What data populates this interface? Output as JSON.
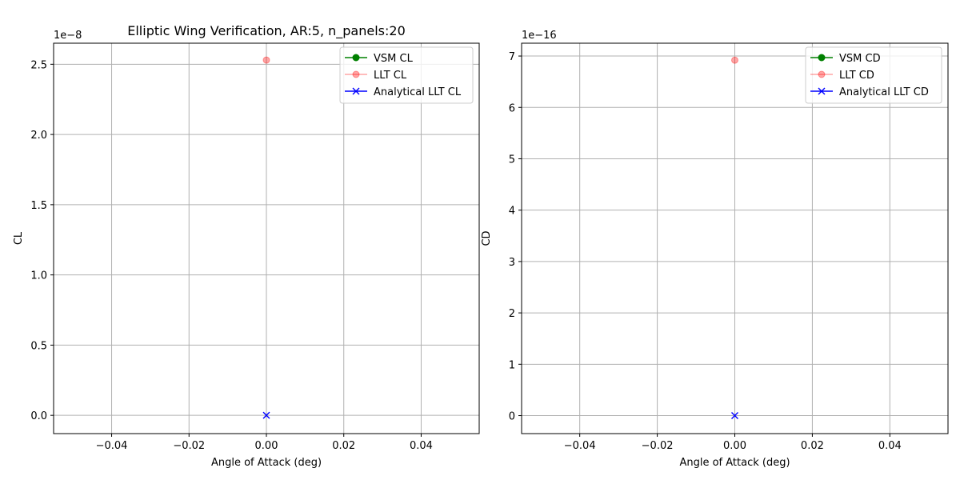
{
  "figure": {
    "title": "Elliptic Wing Verification, AR:5, n_panels:20"
  },
  "chart_data": [
    {
      "type": "line",
      "title": "Elliptic Wing Verification, AR:5, n_panels:20",
      "xlabel": "Angle of Attack (deg)",
      "ylabel": "CL",
      "y_offset_label": "1e−8",
      "y_multiplier": 1e-08,
      "xlim": [
        -0.055,
        0.055
      ],
      "ylim": [
        -0.13,
        2.65
      ],
      "xticks": [
        -0.04,
        -0.02,
        0.0,
        0.02,
        0.04
      ],
      "xtick_labels": [
        "−0.04",
        "−0.02",
        "0.00",
        "0.02",
        "0.04"
      ],
      "yticks": [
        0.0,
        0.5,
        1.0,
        1.5,
        2.0,
        2.5
      ],
      "ytick_labels": [
        "0.0",
        "0.5",
        "1.0",
        "1.5",
        "2.0",
        "2.5"
      ],
      "grid": true,
      "legend_position": "top-right",
      "series": [
        {
          "name": "VSM CL",
          "color": "#008000",
          "marker": "circle",
          "opacity": 1,
          "x": [
            0
          ],
          "y": [
            null
          ]
        },
        {
          "name": "LLT CL",
          "color": "#ff0000",
          "marker": "circle",
          "opacity": 0.35,
          "x": [
            0
          ],
          "y": [
            2.53
          ]
        },
        {
          "name": "Analytical LLT CL",
          "color": "#0000ff",
          "marker": "x",
          "opacity": 1,
          "x": [
            0
          ],
          "y": [
            0
          ]
        }
      ]
    },
    {
      "type": "line",
      "title": "",
      "xlabel": "Angle of Attack (deg)",
      "ylabel": "CD",
      "y_offset_label": "1e−16",
      "y_multiplier": 1e-16,
      "xlim": [
        -0.055,
        0.055
      ],
      "ylim": [
        -0.35,
        7.25
      ],
      "xticks": [
        -0.04,
        -0.02,
        0.0,
        0.02,
        0.04
      ],
      "xtick_labels": [
        "−0.04",
        "−0.02",
        "0.00",
        "0.02",
        "0.04"
      ],
      "yticks": [
        0,
        1,
        2,
        3,
        4,
        5,
        6,
        7
      ],
      "ytick_labels": [
        "0",
        "1",
        "2",
        "3",
        "4",
        "5",
        "6",
        "7"
      ],
      "grid": true,
      "legend_position": "top-right",
      "series": [
        {
          "name": "VSM CD",
          "color": "#008000",
          "marker": "circle",
          "opacity": 1,
          "x": [
            0
          ],
          "y": [
            null
          ]
        },
        {
          "name": "LLT CD",
          "color": "#ff0000",
          "marker": "circle",
          "opacity": 0.35,
          "x": [
            0
          ],
          "y": [
            6.92
          ]
        },
        {
          "name": "Analytical LLT CD",
          "color": "#0000ff",
          "marker": "x",
          "opacity": 1,
          "x": [
            0
          ],
          "y": [
            0
          ]
        }
      ]
    }
  ]
}
